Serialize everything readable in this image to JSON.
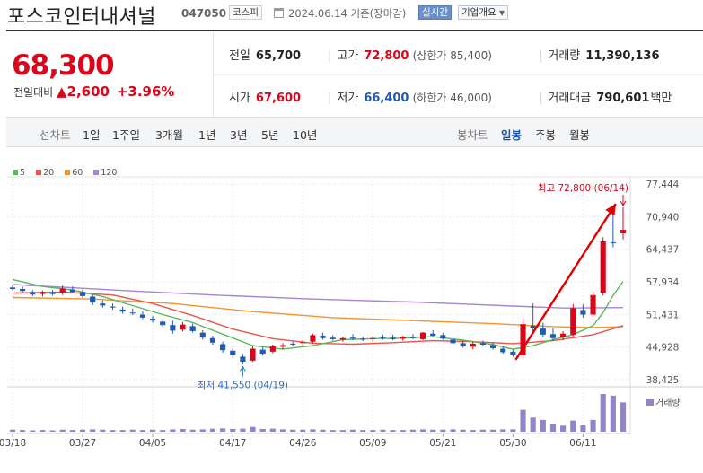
{
  "header": {
    "name": "포스코인터내셔널",
    "code": "047050",
    "market": "코스피",
    "date_text": "2024.06.14 기준(장마감)",
    "live_label": "실시간",
    "info_label": "기업개요"
  },
  "summary": {
    "price": "68,300",
    "change_label": "전일대비",
    "change_arrow": "▲",
    "change_value": "2,600",
    "change_pct": "+3.96%",
    "prev_label": "전일",
    "prev_value": "65,700",
    "open_label": "시가",
    "open_value": "67,600",
    "high_label": "고가",
    "high_value": "72,800",
    "upper_limit": "(상한가 85,400)",
    "low_label": "저가",
    "low_value": "66,400",
    "lower_limit": "(하한가 46,000)",
    "volume_label": "거래량",
    "volume_value": "11,390,136",
    "amount_label": "거래대금",
    "amount_value": "790,601",
    "amount_unit": "백만"
  },
  "periods": {
    "line_label": "선차트",
    "line_items": [
      "1일",
      "1주일",
      "3개월",
      "1년",
      "3년",
      "5년",
      "10년"
    ],
    "candle_label": "봉차트",
    "candle_items": [
      "일봉",
      "주봉",
      "월봉"
    ],
    "active_candle": "일봉"
  },
  "colors": {
    "up": "#d9061c",
    "down": "#1f5bb3",
    "ma5": "#5cb85c",
    "ma20": "#e8544f",
    "ma60": "#f5932e",
    "ma120": "#a884d6",
    "arrow": "#e00000"
  },
  "chart_data": {
    "type": "candlestick",
    "legend": [
      {
        "name": "5",
        "color": "#5cb85c"
      },
      {
        "name": "20",
        "color": "#e8544f"
      },
      {
        "name": "60",
        "color": "#f5932e"
      },
      {
        "name": "120",
        "color": "#a884d6"
      }
    ],
    "y_ticks": [
      77444,
      70940,
      64437,
      57934,
      51431,
      44928,
      38425
    ],
    "y_range": [
      38425,
      77444
    ],
    "x_labels": [
      "03/18",
      "03/27",
      "04/05",
      "04/17",
      "04/26",
      "05/09",
      "05/21",
      "05/30",
      "06/11"
    ],
    "x_label_index": [
      0,
      7,
      14,
      22,
      29,
      36,
      43,
      50,
      57
    ],
    "high_annotation": {
      "text": "최고 72,800 (06/14)",
      "index": 61,
      "value": 72800
    },
    "low_annotation": {
      "text": "최저 41,550 (04/19)",
      "index": 23,
      "value": 41550
    },
    "volume_label": "거래량",
    "candles": [
      [
        56800,
        57300,
        56200,
        56500
      ],
      [
        56500,
        57000,
        55700,
        56100
      ],
      [
        55900,
        56300,
        55100,
        55400
      ],
      [
        55500,
        56200,
        55000,
        55900
      ],
      [
        55800,
        56300,
        55200,
        55500
      ],
      [
        55800,
        57200,
        55300,
        56600
      ],
      [
        56400,
        57000,
        55600,
        55900
      ],
      [
        55900,
        56400,
        54700,
        55100
      ],
      [
        55000,
        55400,
        53300,
        53800
      ],
      [
        53600,
        54200,
        52800,
        53200
      ],
      [
        53000,
        53600,
        52400,
        52800
      ],
      [
        52400,
        53000,
        51600,
        52000
      ],
      [
        51800,
        52600,
        51300,
        51700
      ],
      [
        51400,
        52000,
        50500,
        50800
      ],
      [
        50600,
        51200,
        49800,
        50200
      ],
      [
        50000,
        50500,
        48900,
        49300
      ],
      [
        49300,
        50200,
        47600,
        48200
      ],
      [
        48400,
        49900,
        48000,
        49400
      ],
      [
        49100,
        49600,
        47800,
        48100
      ],
      [
        47800,
        48300,
        46400,
        46800
      ],
      [
        46700,
        47200,
        45400,
        45800
      ],
      [
        45500,
        46000,
        43800,
        44300
      ],
      [
        44200,
        44700,
        42800,
        43300
      ],
      [
        43000,
        43600,
        41550,
        42000
      ],
      [
        42200,
        45100,
        42000,
        44600
      ],
      [
        44400,
        44900,
        43200,
        43600
      ],
      [
        44000,
        45400,
        43700,
        45100
      ],
      [
        45000,
        45700,
        44500,
        45300
      ],
      [
        45600,
        46000,
        45100,
        45500
      ],
      [
        45700,
        46400,
        45300,
        45900
      ],
      [
        46000,
        47600,
        45700,
        47300
      ],
      [
        47200,
        47800,
        46400,
        46700
      ],
      [
        46800,
        47300,
        46200,
        46500
      ],
      [
        46400,
        47000,
        46000,
        46700
      ],
      [
        46800,
        47500,
        46300,
        46600
      ],
      [
        46600,
        47000,
        46100,
        46400
      ],
      [
        46500,
        47100,
        46000,
        46700
      ],
      [
        46900,
        47400,
        46400,
        46800
      ],
      [
        46800,
        47400,
        46300,
        46500
      ],
      [
        46600,
        47200,
        46200,
        46900
      ],
      [
        47000,
        47500,
        46500,
        46700
      ],
      [
        46500,
        47900,
        46300,
        47800
      ],
      [
        47600,
        48300,
        46900,
        47200
      ],
      [
        47300,
        47700,
        46400,
        46600
      ],
      [
        46400,
        46900,
        45400,
        45700
      ],
      [
        45700,
        46200,
        44800,
        45100
      ],
      [
        45000,
        46000,
        44500,
        45600
      ],
      [
        45700,
        46200,
        45200,
        45400
      ],
      [
        45300,
        45800,
        44400,
        44700
      ],
      [
        44600,
        45000,
        43600,
        43900
      ],
      [
        44000,
        44400,
        43000,
        43400
      ],
      [
        43300,
        50700,
        42800,
        49500
      ],
      [
        49200,
        53600,
        47600,
        48700
      ],
      [
        48600,
        49800,
        46800,
        47400
      ],
      [
        47500,
        48700,
        46200,
        46700
      ],
      [
        46900,
        48100,
        46300,
        47600
      ],
      [
        47400,
        53500,
        47000,
        52700
      ],
      [
        52300,
        53400,
        50800,
        51400
      ],
      [
        51400,
        56000,
        51000,
        55300
      ],
      [
        55700,
        66800,
        55200,
        66000
      ],
      [
        65800,
        72800,
        64800,
        65700
      ],
      [
        67600,
        72800,
        66400,
        68300
      ]
    ],
    "ma5": [
      [
        0,
        58400
      ],
      [
        3,
        57000
      ],
      [
        6,
        56300
      ],
      [
        9,
        55000
      ],
      [
        12,
        53200
      ],
      [
        15,
        51400
      ],
      [
        18,
        49800
      ],
      [
        21,
        47500
      ],
      [
        24,
        45200
      ],
      [
        27,
        44500
      ],
      [
        30,
        45200
      ],
      [
        33,
        46400
      ],
      [
        36,
        46600
      ],
      [
        39,
        46700
      ],
      [
        42,
        47000
      ],
      [
        45,
        46300
      ],
      [
        48,
        45400
      ],
      [
        50,
        44500
      ],
      [
        52,
        45200
      ],
      [
        54,
        46400
      ],
      [
        56,
        47400
      ],
      [
        58,
        49200
      ],
      [
        59,
        51800
      ],
      [
        60,
        55200
      ],
      [
        61,
        58000
      ]
    ],
    "ma20": [
      [
        0,
        55700
      ],
      [
        5,
        55900
      ],
      [
        10,
        55300
      ],
      [
        14,
        53600
      ],
      [
        18,
        51200
      ],
      [
        22,
        48500
      ],
      [
        26,
        46600
      ],
      [
        30,
        45700
      ],
      [
        34,
        45500
      ],
      [
        38,
        45800
      ],
      [
        42,
        46200
      ],
      [
        46,
        46000
      ],
      [
        50,
        45600
      ],
      [
        54,
        46200
      ],
      [
        58,
        47400
      ],
      [
        61,
        49200
      ]
    ],
    "ma60": [
      [
        0,
        54800
      ],
      [
        8,
        54500
      ],
      [
        16,
        53600
      ],
      [
        24,
        52000
      ],
      [
        32,
        50800
      ],
      [
        40,
        50200
      ],
      [
        48,
        49600
      ],
      [
        54,
        49000
      ],
      [
        58,
        48800
      ],
      [
        61,
        49000
      ]
    ],
    "ma120": [
      [
        0,
        57400
      ],
      [
        10,
        56300
      ],
      [
        20,
        55300
      ],
      [
        30,
        54500
      ],
      [
        40,
        53900
      ],
      [
        50,
        53100
      ],
      [
        55,
        52700
      ],
      [
        61,
        52800
      ]
    ],
    "volumes": [
      0.6,
      0.5,
      0.4,
      0.5,
      0.4,
      0.6,
      0.5,
      0.6,
      0.7,
      0.6,
      0.5,
      0.5,
      0.6,
      0.5,
      0.6,
      0.5,
      0.7,
      0.8,
      0.6,
      0.7,
      0.9,
      1.0,
      0.8,
      0.9,
      1.4,
      0.8,
      0.9,
      0.7,
      0.6,
      0.6,
      0.7,
      0.6,
      0.5,
      0.5,
      0.6,
      0.5,
      0.5,
      0.6,
      0.5,
      0.5,
      0.6,
      0.7,
      0.6,
      0.6,
      0.7,
      0.6,
      0.5,
      0.6,
      0.6,
      0.7,
      0.7,
      6.5,
      4.2,
      3.5,
      2.4,
      1.8,
      3.3,
      1.9,
      3.5,
      11.2,
      10.7,
      8.7
    ]
  }
}
